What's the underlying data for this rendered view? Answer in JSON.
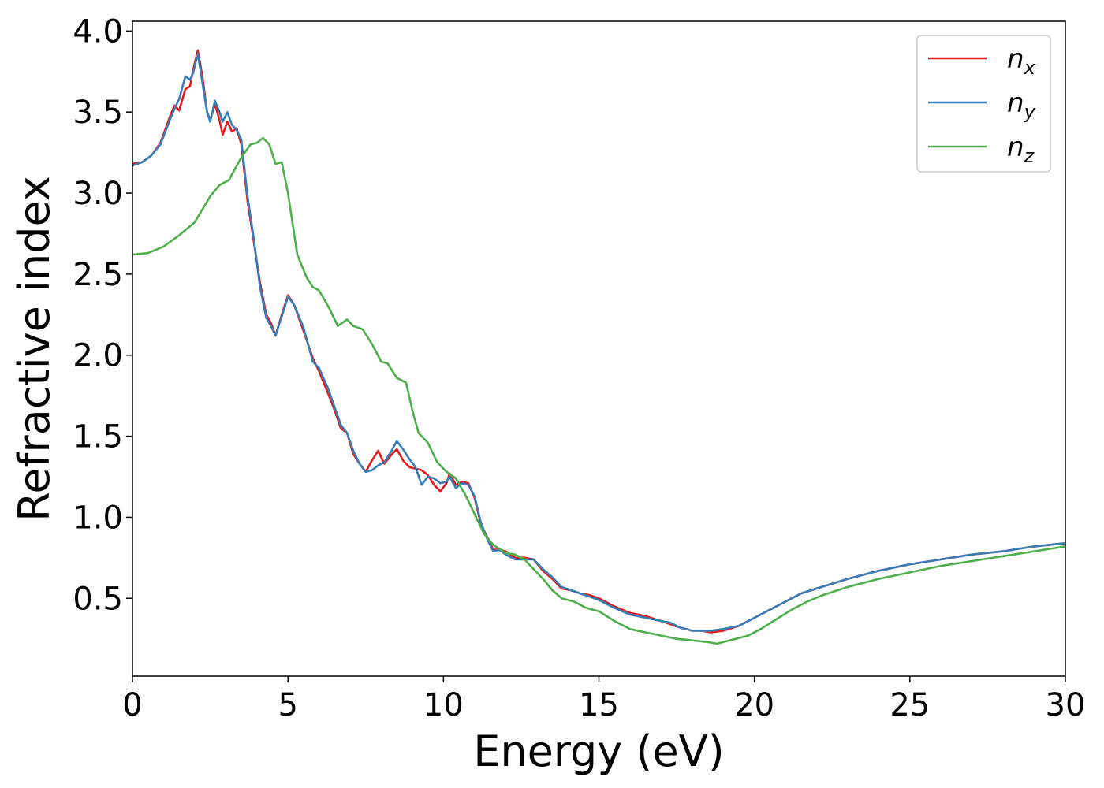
{
  "chart_data": {
    "type": "line",
    "xlabel": "Energy (eV)",
    "ylabel": "Refractive index",
    "xlim": [
      0,
      30
    ],
    "ylim": [
      0.02,
      4.06
    ],
    "xticks": [
      0,
      5,
      10,
      15,
      20,
      25,
      30
    ],
    "xtick_labels": [
      "0",
      "5",
      "10",
      "15",
      "20",
      "25",
      "30"
    ],
    "yticks": [
      0.5,
      1.0,
      1.5,
      2.0,
      2.5,
      3.0,
      3.5,
      4.0
    ],
    "ytick_labels": [
      "0.5",
      "1.0",
      "1.5",
      "2.0",
      "2.5",
      "3.0",
      "3.5",
      "4.0"
    ],
    "grid": false,
    "legend": {
      "position": "top-right"
    },
    "series": [
      {
        "name": "n",
        "subscript": "x",
        "color": "#e41a1c",
        "points": [
          [
            0,
            3.18
          ],
          [
            0.3,
            3.19
          ],
          [
            0.6,
            3.23
          ],
          [
            0.9,
            3.31
          ],
          [
            1.2,
            3.47
          ],
          [
            1.35,
            3.54
          ],
          [
            1.5,
            3.51
          ],
          [
            1.7,
            3.64
          ],
          [
            1.85,
            3.66
          ],
          [
            1.95,
            3.76
          ],
          [
            2.1,
            3.88
          ],
          [
            2.25,
            3.72
          ],
          [
            2.4,
            3.5
          ],
          [
            2.5,
            3.45
          ],
          [
            2.65,
            3.55
          ],
          [
            2.8,
            3.45
          ],
          [
            2.9,
            3.36
          ],
          [
            3.05,
            3.44
          ],
          [
            3.2,
            3.38
          ],
          [
            3.35,
            3.4
          ],
          [
            3.5,
            3.3
          ],
          [
            3.7,
            2.95
          ],
          [
            3.9,
            2.7
          ],
          [
            4.1,
            2.45
          ],
          [
            4.3,
            2.25
          ],
          [
            4.45,
            2.2
          ],
          [
            4.6,
            2.12
          ],
          [
            4.8,
            2.25
          ],
          [
            5.0,
            2.37
          ],
          [
            5.2,
            2.31
          ],
          [
            5.5,
            2.15
          ],
          [
            5.8,
            1.98
          ],
          [
            6.0,
            1.9
          ],
          [
            6.3,
            1.76
          ],
          [
            6.5,
            1.66
          ],
          [
            6.7,
            1.55
          ],
          [
            6.9,
            1.52
          ],
          [
            7.1,
            1.39
          ],
          [
            7.3,
            1.33
          ],
          [
            7.5,
            1.28
          ],
          [
            7.7,
            1.35
          ],
          [
            7.9,
            1.41
          ],
          [
            8.1,
            1.33
          ],
          [
            8.3,
            1.38
          ],
          [
            8.5,
            1.42
          ],
          [
            8.7,
            1.35
          ],
          [
            8.9,
            1.31
          ],
          [
            9.1,
            1.3
          ],
          [
            9.3,
            1.29
          ],
          [
            9.5,
            1.26
          ],
          [
            9.7,
            1.2
          ],
          [
            9.9,
            1.16
          ],
          [
            10.1,
            1.21
          ],
          [
            10.2,
            1.27
          ],
          [
            10.4,
            1.2
          ],
          [
            10.6,
            1.22
          ],
          [
            10.8,
            1.21
          ],
          [
            11.0,
            1.12
          ],
          [
            11.2,
            0.96
          ],
          [
            11.4,
            0.88
          ],
          [
            11.6,
            0.8
          ],
          [
            11.8,
            0.8
          ],
          [
            12.0,
            0.79
          ],
          [
            12.3,
            0.75
          ],
          [
            12.6,
            0.75
          ],
          [
            12.9,
            0.74
          ],
          [
            13.2,
            0.67
          ],
          [
            13.5,
            0.62
          ],
          [
            13.8,
            0.56
          ],
          [
            14.1,
            0.55
          ],
          [
            14.4,
            0.53
          ],
          [
            14.7,
            0.52
          ],
          [
            15.0,
            0.5
          ],
          [
            15.5,
            0.45
          ],
          [
            16.0,
            0.41
          ],
          [
            16.5,
            0.39
          ],
          [
            17.0,
            0.36
          ],
          [
            17.3,
            0.34
          ],
          [
            17.6,
            0.32
          ],
          [
            18.0,
            0.3
          ],
          [
            18.3,
            0.3
          ],
          [
            18.6,
            0.29
          ],
          [
            19.0,
            0.3
          ],
          [
            19.5,
            0.33
          ],
          [
            20.0,
            0.38
          ],
          [
            20.5,
            0.43
          ],
          [
            21.0,
            0.48
          ],
          [
            21.5,
            0.53
          ],
          [
            22.0,
            0.56
          ],
          [
            23.0,
            0.62
          ],
          [
            24.0,
            0.67
          ],
          [
            25.0,
            0.71
          ],
          [
            26.0,
            0.74
          ],
          [
            27.0,
            0.77
          ],
          [
            28.0,
            0.79
          ],
          [
            29.0,
            0.82
          ],
          [
            30.0,
            0.84
          ]
        ]
      },
      {
        "name": "n",
        "subscript": "y",
        "color": "#377eb8",
        "points": [
          [
            0,
            3.17
          ],
          [
            0.3,
            3.19
          ],
          [
            0.6,
            3.23
          ],
          [
            0.9,
            3.3
          ],
          [
            1.2,
            3.45
          ],
          [
            1.35,
            3.52
          ],
          [
            1.5,
            3.58
          ],
          [
            1.7,
            3.72
          ],
          [
            1.85,
            3.7
          ],
          [
            1.95,
            3.74
          ],
          [
            2.1,
            3.86
          ],
          [
            2.25,
            3.68
          ],
          [
            2.4,
            3.5
          ],
          [
            2.5,
            3.44
          ],
          [
            2.65,
            3.57
          ],
          [
            2.8,
            3.5
          ],
          [
            2.9,
            3.44
          ],
          [
            3.05,
            3.5
          ],
          [
            3.2,
            3.42
          ],
          [
            3.35,
            3.39
          ],
          [
            3.5,
            3.33
          ],
          [
            3.7,
            2.98
          ],
          [
            3.9,
            2.72
          ],
          [
            4.1,
            2.42
          ],
          [
            4.3,
            2.23
          ],
          [
            4.45,
            2.18
          ],
          [
            4.6,
            2.12
          ],
          [
            4.8,
            2.24
          ],
          [
            5.0,
            2.36
          ],
          [
            5.2,
            2.31
          ],
          [
            5.5,
            2.17
          ],
          [
            5.8,
            1.96
          ],
          [
            6.0,
            1.92
          ],
          [
            6.3,
            1.79
          ],
          [
            6.5,
            1.68
          ],
          [
            6.7,
            1.57
          ],
          [
            6.9,
            1.52
          ],
          [
            7.1,
            1.41
          ],
          [
            7.3,
            1.33
          ],
          [
            7.5,
            1.28
          ],
          [
            7.7,
            1.29
          ],
          [
            7.9,
            1.32
          ],
          [
            8.1,
            1.34
          ],
          [
            8.3,
            1.4
          ],
          [
            8.5,
            1.47
          ],
          [
            8.7,
            1.42
          ],
          [
            8.9,
            1.36
          ],
          [
            9.1,
            1.31
          ],
          [
            9.3,
            1.2
          ],
          [
            9.5,
            1.25
          ],
          [
            9.7,
            1.24
          ],
          [
            9.9,
            1.21
          ],
          [
            10.1,
            1.22
          ],
          [
            10.2,
            1.25
          ],
          [
            10.4,
            1.18
          ],
          [
            10.6,
            1.21
          ],
          [
            10.8,
            1.2
          ],
          [
            11.0,
            1.13
          ],
          [
            11.2,
            0.97
          ],
          [
            11.4,
            0.87
          ],
          [
            11.6,
            0.79
          ],
          [
            11.8,
            0.8
          ],
          [
            12.0,
            0.77
          ],
          [
            12.3,
            0.74
          ],
          [
            12.6,
            0.74
          ],
          [
            12.9,
            0.74
          ],
          [
            13.2,
            0.68
          ],
          [
            13.5,
            0.63
          ],
          [
            13.8,
            0.57
          ],
          [
            14.1,
            0.55
          ],
          [
            14.4,
            0.53
          ],
          [
            14.7,
            0.51
          ],
          [
            15.0,
            0.49
          ],
          [
            15.5,
            0.44
          ],
          [
            16.0,
            0.4
          ],
          [
            16.5,
            0.38
          ],
          [
            17.0,
            0.36
          ],
          [
            17.3,
            0.35
          ],
          [
            17.6,
            0.32
          ],
          [
            18.0,
            0.3
          ],
          [
            18.3,
            0.3
          ],
          [
            18.6,
            0.3
          ],
          [
            19.0,
            0.31
          ],
          [
            19.5,
            0.33
          ],
          [
            20.0,
            0.38
          ],
          [
            20.5,
            0.43
          ],
          [
            21.0,
            0.48
          ],
          [
            21.5,
            0.53
          ],
          [
            22.0,
            0.56
          ],
          [
            23.0,
            0.62
          ],
          [
            24.0,
            0.67
          ],
          [
            25.0,
            0.71
          ],
          [
            26.0,
            0.74
          ],
          [
            27.0,
            0.77
          ],
          [
            28.0,
            0.79
          ],
          [
            29.0,
            0.82
          ],
          [
            30.0,
            0.84
          ]
        ]
      },
      {
        "name": "n",
        "subscript": "z",
        "color": "#4daf4a",
        "points": [
          [
            0,
            2.62
          ],
          [
            0.5,
            2.63
          ],
          [
            1.0,
            2.67
          ],
          [
            1.5,
            2.74
          ],
          [
            2.0,
            2.82
          ],
          [
            2.5,
            2.98
          ],
          [
            2.8,
            3.05
          ],
          [
            3.1,
            3.08
          ],
          [
            3.5,
            3.22
          ],
          [
            3.8,
            3.3
          ],
          [
            4.0,
            3.31
          ],
          [
            4.2,
            3.34
          ],
          [
            4.4,
            3.3
          ],
          [
            4.6,
            3.18
          ],
          [
            4.8,
            3.19
          ],
          [
            5.0,
            3.0
          ],
          [
            5.3,
            2.62
          ],
          [
            5.6,
            2.48
          ],
          [
            5.8,
            2.42
          ],
          [
            6.0,
            2.4
          ],
          [
            6.3,
            2.3
          ],
          [
            6.6,
            2.18
          ],
          [
            6.9,
            2.22
          ],
          [
            7.1,
            2.18
          ],
          [
            7.4,
            2.16
          ],
          [
            7.7,
            2.07
          ],
          [
            8.0,
            1.96
          ],
          [
            8.2,
            1.95
          ],
          [
            8.5,
            1.86
          ],
          [
            8.8,
            1.83
          ],
          [
            9.0,
            1.66
          ],
          [
            9.2,
            1.52
          ],
          [
            9.5,
            1.46
          ],
          [
            9.8,
            1.34
          ],
          [
            10.1,
            1.28
          ],
          [
            10.4,
            1.24
          ],
          [
            10.7,
            1.14
          ],
          [
            11.0,
            1.02
          ],
          [
            11.3,
            0.9
          ],
          [
            11.6,
            0.83
          ],
          [
            12.0,
            0.78
          ],
          [
            12.3,
            0.77
          ],
          [
            12.6,
            0.74
          ],
          [
            12.9,
            0.68
          ],
          [
            13.2,
            0.62
          ],
          [
            13.5,
            0.55
          ],
          [
            13.8,
            0.5
          ],
          [
            14.2,
            0.48
          ],
          [
            14.6,
            0.44
          ],
          [
            15.0,
            0.42
          ],
          [
            15.5,
            0.36
          ],
          [
            16.0,
            0.31
          ],
          [
            16.5,
            0.29
          ],
          [
            17.0,
            0.27
          ],
          [
            17.5,
            0.25
          ],
          [
            18.0,
            0.24
          ],
          [
            18.5,
            0.23
          ],
          [
            18.8,
            0.22
          ],
          [
            19.2,
            0.24
          ],
          [
            19.8,
            0.27
          ],
          [
            20.2,
            0.31
          ],
          [
            20.7,
            0.37
          ],
          [
            21.2,
            0.43
          ],
          [
            21.7,
            0.48
          ],
          [
            22.2,
            0.52
          ],
          [
            23.0,
            0.57
          ],
          [
            24.0,
            0.62
          ],
          [
            25.0,
            0.66
          ],
          [
            26.0,
            0.7
          ],
          [
            27.0,
            0.73
          ],
          [
            28.0,
            0.76
          ],
          [
            29.0,
            0.79
          ],
          [
            30.0,
            0.82
          ]
        ]
      }
    ]
  }
}
